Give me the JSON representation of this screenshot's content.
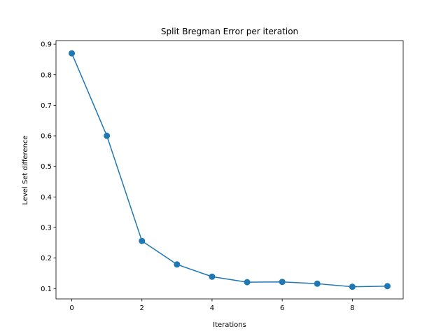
{
  "chart_data": {
    "type": "line",
    "title": "Split Bregman Error per iteration",
    "xlabel": "Iterations",
    "ylabel": "Level Set difference",
    "x": [
      0,
      1,
      2,
      3,
      4,
      5,
      6,
      7,
      8,
      9
    ],
    "series": [
      {
        "values": [
          0.87,
          0.6,
          0.256,
          0.179,
          0.139,
          0.121,
          0.122,
          0.116,
          0.106,
          0.108
        ],
        "color": "#1f77b4",
        "marker": "circle"
      }
    ],
    "xlim": [
      -0.45,
      9.45
    ],
    "ylim": [
      0.0663,
      0.9117
    ],
    "xticks": [
      0,
      2,
      4,
      6,
      8
    ],
    "xtick_labels": [
      "0",
      "2",
      "4",
      "6",
      "8"
    ],
    "yticks": [
      0.1,
      0.2,
      0.3,
      0.4,
      0.5,
      0.6,
      0.7,
      0.8,
      0.9
    ],
    "ytick_labels": [
      "0.1",
      "0.2",
      "0.3",
      "0.4",
      "0.5",
      "0.6",
      "0.7",
      "0.8",
      "0.9"
    ],
    "grid": false,
    "legend": "none"
  }
}
